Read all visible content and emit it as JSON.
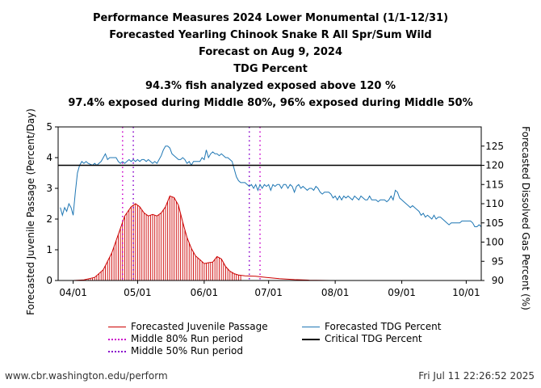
{
  "titles": [
    "Performance Measures 2024 Lower Monumental (1/1-12/31)",
    "Forecasted Yearling Chinook Snake R All Spr/Sum Wild",
    "Forecast on Aug 9, 2024",
    "TDG Percent",
    "94.3% fish analyzed exposed above 120 %",
    "97.4% exposed during Middle 80%, 96% exposed during Middle 50%"
  ],
  "footer": {
    "url": "www.cbr.washington.edu/perform",
    "timestamp": "Fri Jul 11 22:26:52 2025"
  },
  "legend": [
    {
      "label": "Forecasted Juvenile Passage",
      "color": "#cc0000",
      "style": "solid"
    },
    {
      "label": "Middle 80% Run period",
      "color": "#cc00cc",
      "style": "dotted"
    },
    {
      "label": "Middle 50% Run period",
      "color": "#8800cc",
      "style": "dotted"
    },
    {
      "label": "Forecasted TDG Percent",
      "color": "#1f77b4",
      "style": "solid"
    },
    {
      "label": "Critical TDG Percent",
      "color": "#000000",
      "style": "solid"
    }
  ],
  "chart_data": {
    "type": "line",
    "x_tick_labels": [
      "04/01",
      "05/01",
      "06/01",
      "07/01",
      "08/01",
      "09/01",
      "10/01"
    ],
    "x_tick_days": [
      0,
      30,
      61,
      91,
      122,
      153,
      183
    ],
    "x_range_days": [
      -7,
      190
    ],
    "ylabel": "Forecasted Juvenile Passage (Percent/Day)",
    "ylim": [
      0,
      5
    ],
    "yticks": [
      "0",
      "1",
      "2",
      "3",
      "4",
      "5"
    ],
    "y2label": "Forecasted Dissolved Gas Percent (%)",
    "y2lim": [
      90,
      130
    ],
    "y2ticks": [
      "90",
      "95",
      "100",
      "105",
      "110",
      "115",
      "120",
      "125"
    ],
    "critical_tdg": 120,
    "middle80_days": [
      23,
      87
    ],
    "middle50_days": [
      28,
      82
    ],
    "passage_series": {
      "name": "Forecasted Juvenile Passage",
      "points": [
        [
          0,
          0
        ],
        [
          5,
          0.02
        ],
        [
          10,
          0.1
        ],
        [
          14,
          0.35
        ],
        [
          18,
          0.9
        ],
        [
          21,
          1.5
        ],
        [
          24,
          2.1
        ],
        [
          27,
          2.4
        ],
        [
          29,
          2.5
        ],
        [
          31,
          2.4
        ],
        [
          33,
          2.2
        ],
        [
          35,
          2.1
        ],
        [
          37,
          2.15
        ],
        [
          39,
          2.1
        ],
        [
          41,
          2.2
        ],
        [
          43,
          2.4
        ],
        [
          45,
          2.75
        ],
        [
          47,
          2.7
        ],
        [
          49,
          2.45
        ],
        [
          51,
          1.9
        ],
        [
          53,
          1.4
        ],
        [
          55,
          1.05
        ],
        [
          57,
          0.8
        ],
        [
          59,
          0.68
        ],
        [
          61,
          0.55
        ],
        [
          63,
          0.58
        ],
        [
          65,
          0.6
        ],
        [
          67,
          0.78
        ],
        [
          69,
          0.7
        ],
        [
          71,
          0.45
        ],
        [
          73,
          0.3
        ],
        [
          75,
          0.22
        ],
        [
          77,
          0.18
        ],
        [
          80,
          0.15
        ],
        [
          85,
          0.14
        ],
        [
          90,
          0.1
        ],
        [
          96,
          0.06
        ],
        [
          103,
          0.03
        ],
        [
          110,
          0.01
        ],
        [
          120,
          0
        ]
      ]
    },
    "tdg_series": {
      "name": "Forecasted TDG Percent",
      "points": [
        [
          -6,
          109
        ],
        [
          -5,
          107
        ],
        [
          -4,
          109
        ],
        [
          -3,
          108
        ],
        [
          -2,
          110
        ],
        [
          -1,
          109
        ],
        [
          0,
          107
        ],
        [
          1,
          113
        ],
        [
          2,
          118
        ],
        [
          3,
          120
        ],
        [
          4,
          121
        ],
        [
          5,
          120.5
        ],
        [
          6,
          121
        ],
        [
          7,
          120.5
        ],
        [
          9,
          120
        ],
        [
          10,
          120.5
        ],
        [
          11,
          120
        ],
        [
          12,
          120.5
        ],
        [
          13,
          121
        ],
        [
          14,
          122
        ],
        [
          15,
          123
        ],
        [
          16,
          121.5
        ],
        [
          17,
          122
        ],
        [
          18,
          122
        ],
        [
          19,
          122
        ],
        [
          20,
          122
        ],
        [
          21,
          121
        ],
        [
          22,
          120.5
        ],
        [
          23,
          121
        ],
        [
          24,
          120.5
        ],
        [
          25,
          121
        ],
        [
          26,
          121.5
        ],
        [
          27,
          121
        ],
        [
          28,
          121.5
        ],
        [
          29,
          121
        ],
        [
          30,
          121.5
        ],
        [
          31,
          121
        ],
        [
          32,
          121.5
        ],
        [
          33,
          121.5
        ],
        [
          34,
          121
        ],
        [
          35,
          121.5
        ],
        [
          36,
          121
        ],
        [
          37,
          120.5
        ],
        [
          38,
          121
        ],
        [
          39,
          120.5
        ],
        [
          40,
          121.5
        ],
        [
          41,
          122.5
        ],
        [
          42,
          124
        ],
        [
          43,
          125
        ],
        [
          44,
          125
        ],
        [
          45,
          124.5
        ],
        [
          46,
          123
        ],
        [
          47,
          122.5
        ],
        [
          48,
          122
        ],
        [
          49,
          121.5
        ],
        [
          50,
          121.5
        ],
        [
          51,
          122
        ],
        [
          52,
          121.5
        ],
        [
          53,
          120.5
        ],
        [
          54,
          121
        ],
        [
          55,
          120
        ],
        [
          56,
          121
        ],
        [
          57,
          121
        ],
        [
          58,
          121
        ],
        [
          59,
          121
        ],
        [
          60,
          122
        ],
        [
          61,
          121.5
        ],
        [
          62,
          124
        ],
        [
          63,
          122
        ],
        [
          64,
          123
        ],
        [
          65,
          123.5
        ],
        [
          66,
          123
        ],
        [
          67,
          123
        ],
        [
          68,
          122.5
        ],
        [
          69,
          123
        ],
        [
          70,
          122.5
        ],
        [
          71,
          122
        ],
        [
          72,
          122
        ],
        [
          73,
          121.5
        ],
        [
          74,
          121
        ],
        [
          75,
          119
        ],
        [
          76,
          117
        ],
        [
          77,
          116
        ],
        [
          78,
          115.5
        ],
        [
          80,
          115.5
        ],
        [
          81,
          115
        ],
        [
          82,
          114.5
        ],
        [
          83,
          115
        ],
        [
          84,
          114
        ],
        [
          85,
          115
        ],
        [
          86,
          113.5
        ],
        [
          87,
          115
        ],
        [
          88,
          114
        ],
        [
          89,
          115
        ],
        [
          90,
          114.5
        ],
        [
          91,
          115
        ],
        [
          92,
          113.5
        ],
        [
          93,
          115
        ],
        [
          94,
          114.5
        ],
        [
          95,
          115
        ],
        [
          96,
          115
        ],
        [
          97,
          114
        ],
        [
          98,
          115
        ],
        [
          99,
          115
        ],
        [
          100,
          114
        ],
        [
          101,
          115
        ],
        [
          102,
          114.5
        ],
        [
          103,
          113
        ],
        [
          104,
          114.5
        ],
        [
          105,
          115
        ],
        [
          106,
          114
        ],
        [
          107,
          114.5
        ],
        [
          108,
          114
        ],
        [
          109,
          113.5
        ],
        [
          110,
          114
        ],
        [
          111,
          114
        ],
        [
          112,
          113.5
        ],
        [
          113,
          114.5
        ],
        [
          114,
          114
        ],
        [
          115,
          113
        ],
        [
          116,
          112.5
        ],
        [
          117,
          113
        ],
        [
          118,
          113
        ],
        [
          119,
          113
        ],
        [
          120,
          112.5
        ],
        [
          121,
          111.5
        ],
        [
          122,
          112
        ],
        [
          123,
          111
        ],
        [
          124,
          112
        ],
        [
          125,
          111
        ],
        [
          126,
          112
        ],
        [
          127,
          111.5
        ],
        [
          128,
          112
        ],
        [
          129,
          111.5
        ],
        [
          130,
          111
        ],
        [
          131,
          112
        ],
        [
          132,
          111.5
        ],
        [
          133,
          111
        ],
        [
          134,
          112
        ],
        [
          135,
          111.5
        ],
        [
          136,
          111
        ],
        [
          137,
          111
        ],
        [
          138,
          112
        ],
        [
          139,
          111
        ],
        [
          140,
          111
        ],
        [
          141,
          111
        ],
        [
          142,
          110.5
        ],
        [
          143,
          111
        ],
        [
          144,
          111
        ],
        [
          145,
          111
        ],
        [
          146,
          110.5
        ],
        [
          147,
          111
        ],
        [
          148,
          112
        ],
        [
          149,
          111
        ],
        [
          150,
          113.5
        ],
        [
          151,
          113
        ],
        [
          152,
          111.5
        ],
        [
          153,
          111
        ],
        [
          154,
          110.5
        ],
        [
          155,
          110
        ],
        [
          156,
          109.5
        ],
        [
          157,
          109
        ],
        [
          158,
          109.5
        ],
        [
          159,
          109
        ],
        [
          160,
          108.5
        ],
        [
          161,
          108
        ],
        [
          162,
          107
        ],
        [
          163,
          107.5
        ],
        [
          164,
          106.5
        ],
        [
          165,
          107
        ],
        [
          166,
          106.5
        ],
        [
          167,
          106
        ],
        [
          168,
          107
        ],
        [
          169,
          106
        ],
        [
          170,
          106.5
        ],
        [
          171,
          106.5
        ],
        [
          172,
          106
        ],
        [
          173,
          105.5
        ],
        [
          174,
          105
        ],
        [
          175,
          104.5
        ],
        [
          176,
          105
        ],
        [
          177,
          105
        ],
        [
          178,
          105
        ],
        [
          179,
          105
        ],
        [
          180,
          105
        ],
        [
          181,
          105.5
        ],
        [
          182,
          105.5
        ],
        [
          183,
          105.5
        ],
        [
          184,
          105.5
        ],
        [
          185,
          105.5
        ],
        [
          186,
          105
        ],
        [
          187,
          104
        ],
        [
          188,
          104
        ],
        [
          189,
          104.5
        ],
        [
          190,
          104
        ]
      ]
    }
  }
}
